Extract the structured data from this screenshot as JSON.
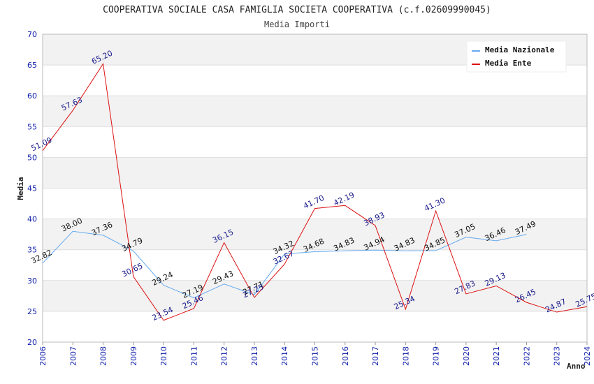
{
  "chart_data": {
    "type": "line",
    "title": "COOPERATIVA SOCIALE CASA FAMIGLIA SOCIETA COOPERATIVA (c.f.02609990045)",
    "subtitle": "Media Importi",
    "xlabel": "Anno",
    "ylabel": "Media",
    "ylim": [
      20,
      70
    ],
    "yticks": [
      "20",
      "25",
      "30",
      "35",
      "40",
      "45",
      "50",
      "55",
      "60",
      "65",
      "70"
    ],
    "categories": [
      "2006",
      "2007",
      "2008",
      "2009",
      "2010",
      "2011",
      "2012",
      "2013",
      "2014",
      "2015",
      "2016",
      "2017",
      "2018",
      "2019",
      "2020",
      "2021",
      "2022",
      "2023",
      "2024"
    ],
    "legend_position": "top-right",
    "series": [
      {
        "name": "Media Nazionale",
        "color": "#66aaee",
        "label_color": "#111111",
        "values": [
          32.82,
          38.0,
          37.36,
          34.79,
          29.24,
          27.19,
          29.43,
          27.71,
          34.32,
          34.68,
          34.83,
          34.94,
          34.83,
          34.85,
          37.05,
          36.46,
          37.49,
          null,
          null
        ],
        "labels": [
          "32.82",
          "38.00",
          "37.36",
          "34.79",
          "29.24",
          "27.19",
          "29.43",
          "27.71",
          "34.32",
          "34.68",
          "34.83",
          "34.94",
          "34.83",
          "34.85",
          "37.05",
          "36.46",
          "37.49",
          null,
          null
        ]
      },
      {
        "name": "Media Ente",
        "color": "#dd1111",
        "label_color": "#1a1a8c",
        "values": [
          51.09,
          57.63,
          65.2,
          30.65,
          23.54,
          25.46,
          36.15,
          27.25,
          32.67,
          41.7,
          42.19,
          38.93,
          25.34,
          41.3,
          27.83,
          29.13,
          26.45,
          24.87,
          25.75
        ],
        "labels": [
          "51.09",
          "57.63",
          "65.20",
          "30.65",
          "23.54",
          "25.46",
          "36.15",
          "27.25",
          "32.67",
          "41.70",
          "42.19",
          "38.93",
          "25.34",
          "41.30",
          "27.83",
          "29.13",
          "26.45",
          "24.87",
          "25.75"
        ]
      }
    ]
  }
}
